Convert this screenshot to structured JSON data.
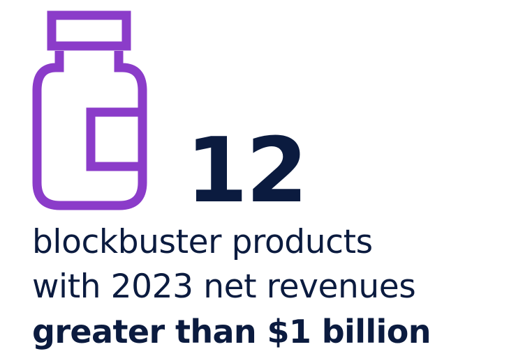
{
  "headline": {
    "number": "12"
  },
  "description": {
    "line1": "blockbuster products",
    "line2": "with 2023 net revenues",
    "line3": "greater than $1 billion"
  },
  "icon": {
    "name": "medicine-bottle-icon"
  },
  "colors": {
    "accent": "#8b3cc9",
    "text": "#0b1b3f",
    "background": "#ffffff"
  }
}
